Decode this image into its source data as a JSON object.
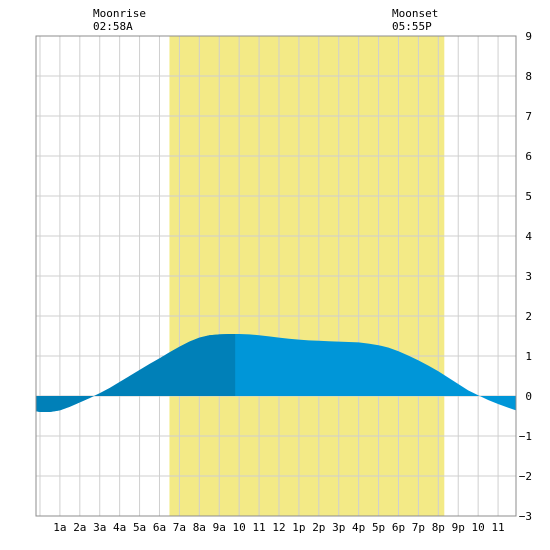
{
  "moonrise": {
    "label": "Moonrise",
    "time": "02:58A"
  },
  "moonset": {
    "label": "Moonset",
    "time": "05:55P"
  },
  "chart_data": {
    "type": "area",
    "x_tick_labels": [
      "1a",
      "2a",
      "3a",
      "4a",
      "5a",
      "6a",
      "7a",
      "8a",
      "9a",
      "10",
      "11",
      "12",
      "1p",
      "2p",
      "3p",
      "4p",
      "5p",
      "6p",
      "7p",
      "8p",
      "9p",
      "10",
      "11"
    ],
    "x_range_hours": [
      -0.2,
      23.9
    ],
    "y_ticks": [
      -3,
      -2,
      -1,
      0,
      1,
      2,
      3,
      4,
      5,
      6,
      7,
      8,
      9
    ],
    "ylim": [
      -3,
      9
    ],
    "daylight_hours": [
      6.5,
      20.3
    ],
    "highlight_until_hour": 9.8,
    "grid": true,
    "series": [
      {
        "x": [
          -0.2,
          0,
          0.5,
          1,
          1.5,
          2,
          2.5,
          3,
          3.5,
          4,
          4.5,
          5,
          5.5,
          6,
          6.5,
          7,
          7.5,
          8,
          8.5,
          9,
          9.5,
          10,
          10.5,
          11,
          11.5,
          12,
          12.5,
          13,
          13.5,
          14,
          14.5,
          15,
          15.5,
          16,
          16.5,
          17,
          17.5,
          18,
          18.5,
          19,
          19.5,
          20,
          20.5,
          21,
          21.5,
          22,
          22.5,
          23,
          23.5,
          23.9
        ],
        "y": [
          -0.38,
          -0.4,
          -0.4,
          -0.36,
          -0.27,
          -0.16,
          -0.05,
          0.07,
          0.2,
          0.35,
          0.5,
          0.65,
          0.8,
          0.94,
          1.09,
          1.23,
          1.36,
          1.46,
          1.52,
          1.54,
          1.55,
          1.55,
          1.54,
          1.52,
          1.49,
          1.46,
          1.43,
          1.41,
          1.39,
          1.38,
          1.37,
          1.36,
          1.35,
          1.34,
          1.31,
          1.27,
          1.21,
          1.12,
          1.01,
          0.89,
          0.76,
          0.62,
          0.46,
          0.3,
          0.14,
          0.02,
          -0.1,
          -0.2,
          -0.29,
          -0.36
        ],
        "colors": {
          "highlight": "#0080B8",
          "main": "#0096D8"
        }
      }
    ],
    "colors": {
      "daylight": "#F3EA86",
      "grid": "#CFCFCF",
      "frame": "#8C8C8C"
    }
  }
}
